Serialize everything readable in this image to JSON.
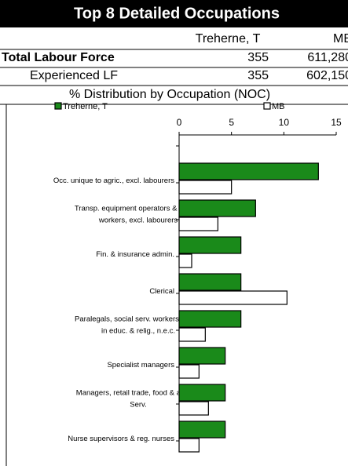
{
  "header": {
    "title": "Top 8 Detailed Occupations",
    "columns": [
      "Treherne, T",
      "MB"
    ],
    "rows": [
      {
        "label": "Total Labour Force",
        "values": [
          "355",
          "611,280"
        ]
      },
      {
        "label": "Experienced LF",
        "values": [
          "355",
          "602,150"
        ]
      }
    ],
    "subtitle": "% Distribution by Occupation (NOC)"
  },
  "chart_data": {
    "type": "hbar",
    "categories": [
      "Occ. unique to agric., excl. labourers",
      "Transp. equipment operators & related\nworkers, excl. labourers",
      "Fin. & insurance admin.",
      "Clerical",
      "Paralegals, social serv. workers & occ.\nin educ. & relig., n.e.c.",
      "Specialist managers",
      "Managers, retail trade, food & accom.\nServ.",
      "Nurse supervisors & reg. nurses"
    ],
    "series": [
      {
        "name": "Treherne, T",
        "color": "#1a8a1a",
        "values": [
          13.3,
          7.3,
          5.9,
          5.9,
          5.9,
          4.4,
          4.4,
          4.4
        ]
      },
      {
        "name": "MB",
        "color": "#ffffff",
        "values": [
          5.0,
          3.7,
          1.2,
          10.3,
          2.5,
          1.9,
          2.8,
          1.9
        ]
      }
    ],
    "xlim": [
      0,
      15
    ],
    "xticks": [
      0,
      5,
      10,
      15
    ]
  }
}
